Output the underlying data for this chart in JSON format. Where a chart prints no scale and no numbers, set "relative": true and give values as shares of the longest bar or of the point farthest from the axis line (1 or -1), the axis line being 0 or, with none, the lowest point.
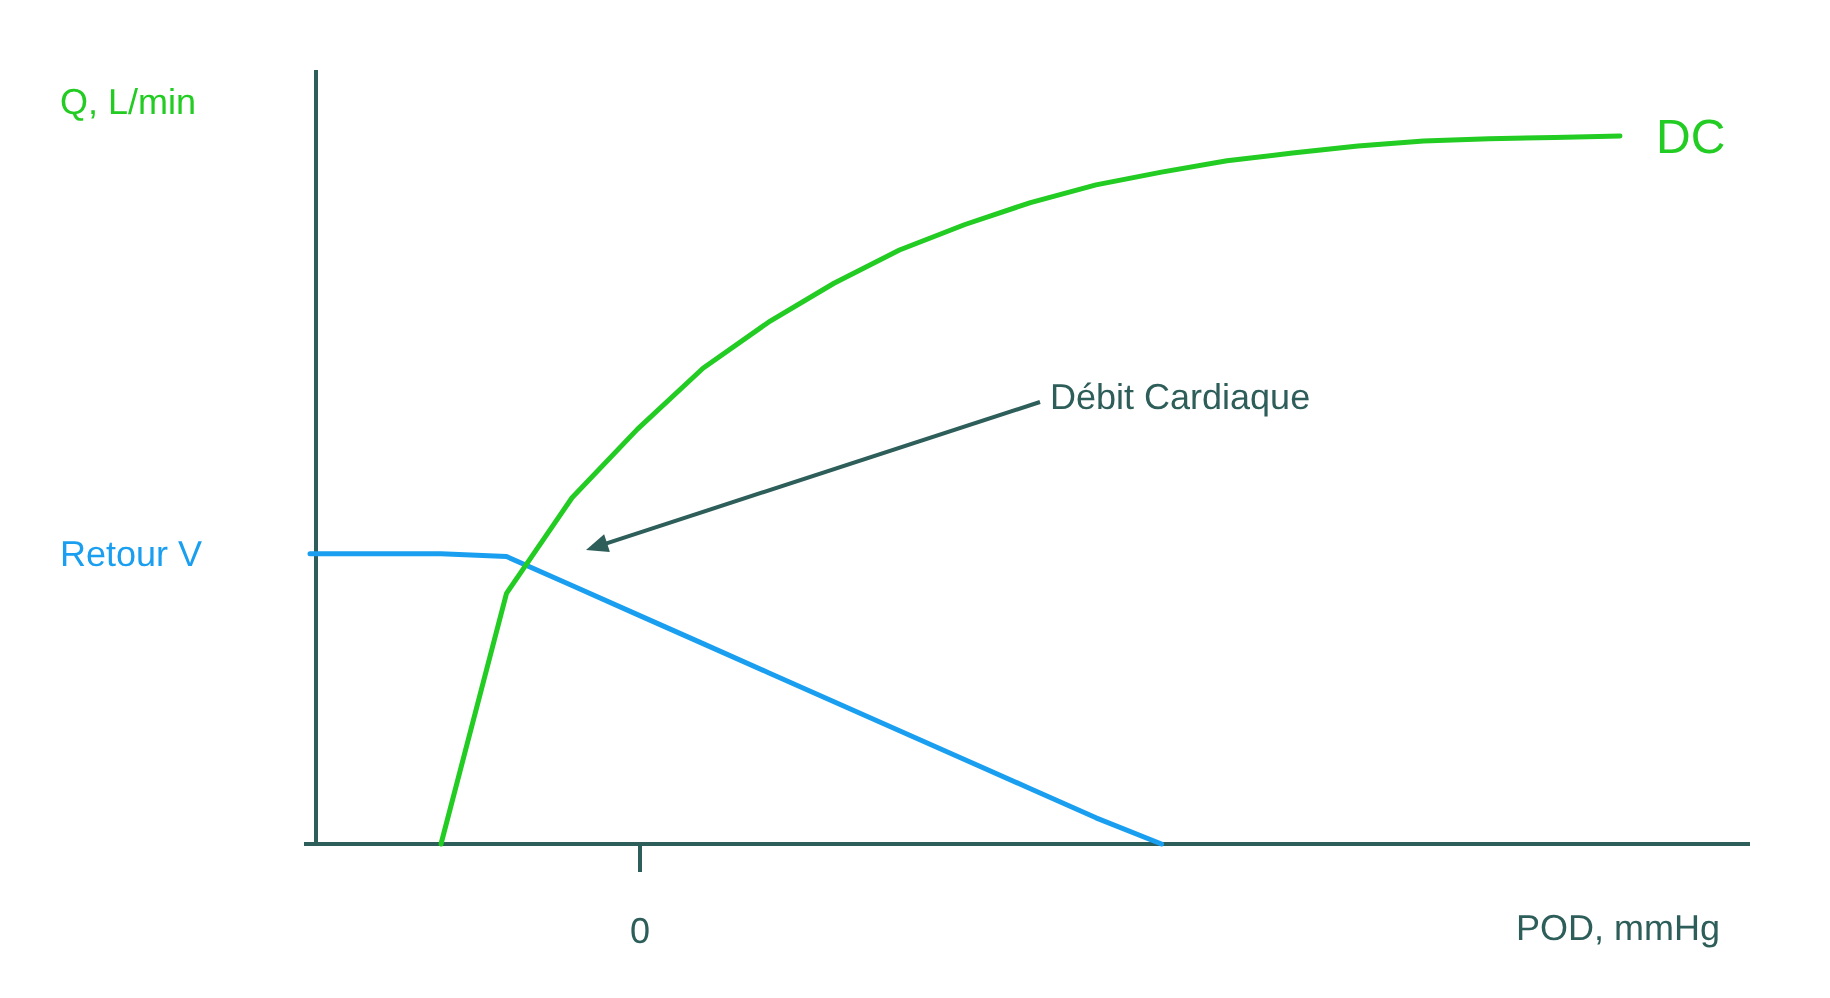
{
  "chart_data": {
    "type": "line",
    "relative": true,
    "ylabel": "Q, L/min",
    "xlabel": "POD, mmHg",
    "categories": [
      null,
      null,
      null,
      null,
      null,
      null,
      null,
      null,
      null,
      null,
      null,
      null,
      null,
      null,
      null,
      null,
      null,
      null,
      null,
      null,
      null
    ],
    "series": [
      {
        "name": "Retour V",
        "color": "#1a9ff0",
        "values": [
          0.41,
          0.41,
          0.41,
          0.406,
          0.365,
          0.324,
          0.283,
          0.242,
          0.201,
          0.16,
          0.119,
          0.078,
          0.037,
          0,
          null,
          null,
          null,
          null,
          null,
          null,
          null
        ]
      },
      {
        "name": "DC",
        "color": "#22cc22",
        "values": [
          null,
          null,
          0,
          0.354,
          0.489,
          0.586,
          0.672,
          0.737,
          0.792,
          0.839,
          0.875,
          0.906,
          0.931,
          0.949,
          0.965,
          0.976,
          0.986,
          0.993,
          0.996,
          0.998,
          1
        ]
      }
    ],
    "annotations": [
      "Débit Cardiaque",
      "0"
    ]
  }
}
